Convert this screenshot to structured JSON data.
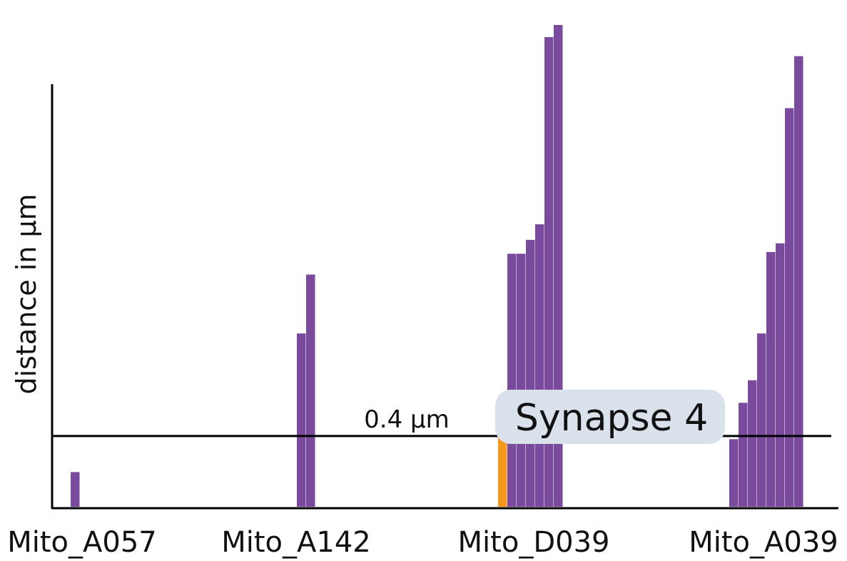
{
  "chart_data": {
    "type": "bar",
    "title": "",
    "ylabel": "distance in µm",
    "ylim": [
      0,
      2.8
    ],
    "grid": false,
    "reference_line": {
      "value": 0.4,
      "label": "0.4 µm"
    },
    "annotation": {
      "text": "Synapse 4",
      "category": "Mito_D039"
    },
    "colors": {
      "default": "#7a4a9d",
      "highlight": "#f5961e",
      "callout_bg": "#d9e1ea",
      "axis": "#000000"
    },
    "categories": [
      {
        "name": "Mito_A057",
        "values": [
          0.2
        ]
      },
      {
        "name": "Mito_A142",
        "values": [
          1.0,
          1.34
        ]
      },
      {
        "name": "Mito_D039",
        "values": [
          0.4,
          1.46,
          1.46,
          1.54,
          1.63,
          2.71,
          2.78
        ],
        "highlight_index": 0
      },
      {
        "name": "Mito_A039",
        "values": [
          0.39,
          0.6,
          0.73,
          1.0,
          1.47,
          1.52,
          2.3,
          2.6
        ]
      }
    ]
  }
}
